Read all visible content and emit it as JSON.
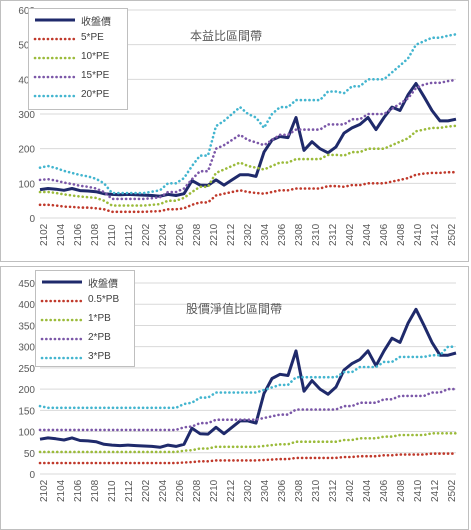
{
  "colors": {
    "close": "#1f2a6b",
    "m1": "#c0392b",
    "m2": "#9bbb3a",
    "m3": "#7b57a8",
    "m4": "#43b5cf",
    "grid": "#d9d9d9",
    "axis_text": "#595959"
  },
  "chart_data": [
    {
      "type": "line",
      "title": "本益比區間帶",
      "ylim": [
        0,
        600
      ],
      "yticks": [
        "0",
        "100",
        "200",
        "300",
        "400",
        "500",
        "600"
      ],
      "xticks": [
        "2102",
        "2104",
        "2106",
        "2108",
        "2110",
        "2112",
        "2202",
        "2204",
        "2206",
        "2208",
        "2210",
        "2212",
        "2302",
        "2304",
        "2306",
        "2308",
        "2310",
        "2312",
        "2402",
        "2404",
        "2406",
        "2408",
        "2410",
        "2412",
        "2502"
      ],
      "legend": [
        "收盤價",
        "5*PE",
        "10*PE",
        "15*PE",
        "20*PE"
      ],
      "grid": true,
      "legend_position": "top-left",
      "series": [
        {
          "name": "收盤價",
          "style": "solid",
          "values": [
            82,
            85,
            83,
            80,
            85,
            79,
            78,
            76,
            70,
            68,
            67,
            68,
            67,
            66,
            65,
            63,
            68,
            65,
            70,
            108,
            95,
            94,
            110,
            95,
            110,
            125,
            125,
            120,
            190,
            225,
            235,
            232,
            290,
            195,
            220,
            200,
            188,
            205,
            245,
            260,
            270,
            290,
            255,
            290,
            320,
            310,
            355,
            388,
            350,
            310,
            280,
            280,
            285
          ]
        },
        {
          "name": "5*PE",
          "style": "dotted",
          "values": [
            38,
            38,
            36,
            33,
            32,
            30,
            30,
            28,
            25,
            18,
            18,
            18,
            18,
            18,
            19,
            20,
            25,
            25,
            28,
            38,
            45,
            45,
            65,
            70,
            75,
            80,
            75,
            72,
            70,
            75,
            80,
            80,
            85,
            85,
            85,
            85,
            92,
            92,
            90,
            95,
            95,
            100,
            100,
            100,
            105,
            110,
            115,
            125,
            128,
            130,
            130,
            132,
            132
          ]
        },
        {
          "name": "10*PE",
          "style": "dotted",
          "values": [
            75,
            75,
            72,
            68,
            65,
            62,
            60,
            58,
            50,
            36,
            36,
            36,
            36,
            36,
            38,
            40,
            50,
            50,
            58,
            75,
            90,
            90,
            130,
            140,
            150,
            160,
            150,
            145,
            140,
            150,
            160,
            160,
            170,
            170,
            170,
            170,
            182,
            182,
            180,
            190,
            190,
            200,
            200,
            200,
            210,
            220,
            230,
            250,
            255,
            260,
            260,
            264,
            266
          ]
        },
        {
          "name": "15*PE",
          "style": "dotted",
          "values": [
            110,
            112,
            108,
            102,
            98,
            93,
            90,
            85,
            75,
            55,
            55,
            55,
            55,
            55,
            57,
            60,
            75,
            75,
            85,
            112,
            135,
            135,
            200,
            210,
            225,
            240,
            225,
            218,
            210,
            225,
            240,
            240,
            255,
            255,
            255,
            255,
            270,
            270,
            270,
            285,
            285,
            300,
            300,
            300,
            315,
            330,
            345,
            375,
            385,
            390,
            390,
            395,
            398
          ]
        },
        {
          "name": "20*PE",
          "style": "dotted",
          "values": [
            145,
            150,
            144,
            136,
            130,
            124,
            120,
            113,
            100,
            72,
            72,
            72,
            72,
            72,
            76,
            80,
            100,
            100,
            115,
            150,
            180,
            180,
            265,
            280,
            300,
            320,
            300,
            290,
            260,
            300,
            320,
            320,
            340,
            340,
            340,
            340,
            365,
            365,
            360,
            380,
            380,
            400,
            400,
            400,
            420,
            440,
            460,
            500,
            510,
            520,
            520,
            526,
            530
          ]
        }
      ]
    },
    {
      "type": "line",
      "title": "股價淨值比區間帶",
      "ylim": [
        0,
        450
      ],
      "yticks": [
        "0",
        "50",
        "100",
        "150",
        "200",
        "250",
        "300",
        "350",
        "400",
        "450"
      ],
      "xticks": [
        "2102",
        "2104",
        "2106",
        "2108",
        "2110",
        "2112",
        "2202",
        "2204",
        "2206",
        "2208",
        "2210",
        "2212",
        "2302",
        "2304",
        "2306",
        "2308",
        "2310",
        "2312",
        "2402",
        "2404",
        "2406",
        "2408",
        "2410",
        "2412",
        "2502"
      ],
      "legend": [
        "收盤價",
        "0.5*PB",
        "1*PB",
        "2*PB",
        "3*PB"
      ],
      "grid": true,
      "legend_position": "top-left",
      "series": [
        {
          "name": "收盤價",
          "style": "solid",
          "values": [
            82,
            85,
            83,
            80,
            85,
            79,
            78,
            76,
            70,
            68,
            67,
            68,
            67,
            66,
            65,
            63,
            68,
            65,
            70,
            108,
            95,
            94,
            110,
            95,
            110,
            125,
            125,
            120,
            190,
            225,
            235,
            232,
            290,
            195,
            220,
            200,
            188,
            205,
            245,
            260,
            270,
            290,
            255,
            290,
            320,
            310,
            355,
            388,
            350,
            310,
            280,
            280,
            285
          ]
        },
        {
          "name": "0.5*PB",
          "style": "dotted",
          "values": [
            26,
            26,
            26,
            26,
            26,
            26,
            26,
            26,
            26,
            26,
            26,
            26,
            26,
            26,
            26,
            26,
            26,
            26,
            27,
            28,
            30,
            30,
            32,
            32,
            32,
            32,
            32,
            32,
            33,
            34,
            35,
            35,
            38,
            38,
            38,
            38,
            38,
            38,
            40,
            40,
            42,
            42,
            42,
            44,
            44,
            46,
            46,
            46,
            46,
            48,
            48,
            48,
            48
          ]
        },
        {
          "name": "1*PB",
          "style": "dotted",
          "values": [
            52,
            52,
            52,
            52,
            52,
            52,
            52,
            52,
            52,
            52,
            52,
            52,
            52,
            52,
            52,
            52,
            52,
            52,
            55,
            56,
            60,
            60,
            64,
            64,
            64,
            64,
            64,
            64,
            66,
            68,
            70,
            70,
            76,
            76,
            76,
            76,
            76,
            76,
            80,
            80,
            84,
            84,
            84,
            88,
            88,
            92,
            92,
            92,
            92,
            96,
            96,
            96,
            96
          ]
        },
        {
          "name": "2*PB",
          "style": "dotted",
          "values": [
            104,
            104,
            104,
            104,
            104,
            104,
            104,
            104,
            104,
            104,
            104,
            104,
            104,
            104,
            104,
            104,
            104,
            104,
            110,
            112,
            120,
            120,
            128,
            128,
            128,
            128,
            128,
            128,
            132,
            136,
            140,
            140,
            152,
            152,
            152,
            152,
            152,
            152,
            160,
            160,
            168,
            168,
            168,
            176,
            176,
            184,
            184,
            184,
            184,
            192,
            192,
            200,
            200
          ]
        },
        {
          "name": "3*PB",
          "style": "dotted",
          "values": [
            160,
            156,
            156,
            156,
            156,
            156,
            156,
            156,
            156,
            156,
            156,
            156,
            156,
            156,
            156,
            156,
            156,
            156,
            165,
            168,
            180,
            180,
            192,
            192,
            192,
            192,
            192,
            192,
            198,
            204,
            210,
            210,
            228,
            228,
            228,
            228,
            228,
            228,
            240,
            240,
            252,
            252,
            252,
            264,
            264,
            276,
            276,
            276,
            276,
            280,
            280,
            300,
            300
          ]
        }
      ]
    }
  ]
}
